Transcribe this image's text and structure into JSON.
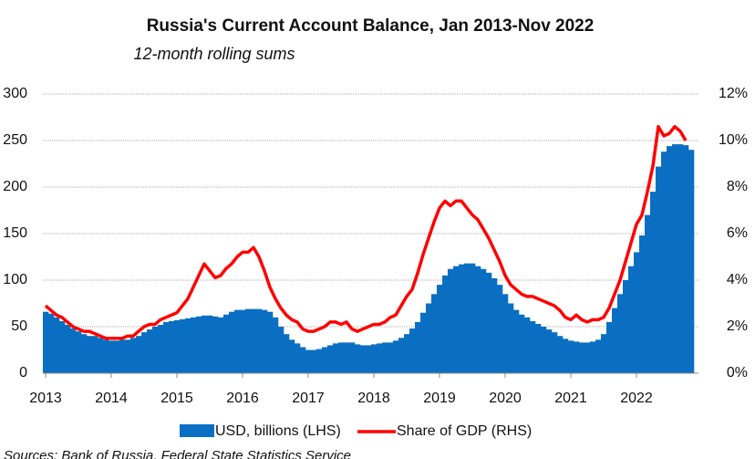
{
  "chart_data": {
    "type": "bar-line",
    "title": "Russia's Current Account Balance, Jan 2013-Nov 2022",
    "subtitle": "12-month rolling sums",
    "source": "Sources: Bank of Russia, Federal State Statistics Service",
    "categories": [
      "2013",
      null,
      null,
      null,
      null,
      null,
      null,
      null,
      null,
      null,
      null,
      null,
      "2014",
      null,
      null,
      null,
      null,
      null,
      null,
      null,
      null,
      null,
      null,
      null,
      "2015",
      null,
      null,
      null,
      null,
      null,
      null,
      null,
      null,
      null,
      null,
      null,
      "2016",
      null,
      null,
      null,
      null,
      null,
      null,
      null,
      null,
      null,
      null,
      null,
      "2017",
      null,
      null,
      null,
      null,
      null,
      null,
      null,
      null,
      null,
      null,
      null,
      "2018",
      null,
      null,
      null,
      null,
      null,
      null,
      null,
      null,
      null,
      null,
      null,
      "2019",
      null,
      null,
      null,
      null,
      null,
      null,
      null,
      null,
      null,
      null,
      null,
      "2020",
      null,
      null,
      null,
      null,
      null,
      null,
      null,
      null,
      null,
      null,
      null,
      "2021",
      null,
      null,
      null,
      null,
      null,
      null,
      null,
      null,
      null,
      null,
      null,
      "2022",
      null,
      null,
      null,
      null,
      null,
      null,
      null,
      null,
      null,
      null
    ],
    "series": [
      {
        "name": "USD, billions (LHS)",
        "color": "#0a6fc2",
        "axis": "y",
        "values": [
          66,
          64,
          60,
          56,
          52,
          48,
          45,
          42,
          40,
          40,
          38,
          36,
          35,
          35,
          36,
          36,
          38,
          40,
          44,
          47,
          50,
          52,
          55,
          56,
          57,
          58,
          59,
          60,
          61,
          62,
          62,
          61,
          60,
          63,
          66,
          68,
          68,
          69,
          69,
          69,
          68,
          66,
          60,
          50,
          42,
          36,
          32,
          28,
          25,
          25,
          26,
          28,
          30,
          32,
          33,
          33,
          33,
          31,
          30,
          30,
          31,
          32,
          33,
          33,
          35,
          38,
          42,
          48,
          55,
          65,
          75,
          85,
          95,
          105,
          112,
          115,
          117,
          118,
          118,
          115,
          112,
          108,
          102,
          95,
          85,
          75,
          68,
          63,
          60,
          56,
          53,
          50,
          47,
          44,
          40,
          37,
          35,
          34,
          33,
          33,
          34,
          36,
          42,
          55,
          70,
          85,
          100,
          115,
          130,
          148,
          170,
          195,
          222,
          238,
          244,
          246,
          246,
          245,
          240
        ]
      },
      {
        "name": "Share of GDP (RHS)",
        "color": "#ff0000",
        "axis": "y2",
        "values": [
          2.9,
          2.7,
          2.5,
          2.4,
          2.2,
          2.0,
          1.9,
          1.8,
          1.8,
          1.7,
          1.6,
          1.5,
          1.5,
          1.5,
          1.5,
          1.6,
          1.6,
          1.8,
          2.0,
          2.1,
          2.1,
          2.3,
          2.4,
          2.5,
          2.6,
          2.9,
          3.2,
          3.7,
          4.2,
          4.7,
          4.4,
          4.1,
          4.2,
          4.5,
          4.7,
          5.0,
          5.2,
          5.2,
          5.4,
          5.0,
          4.4,
          3.7,
          3.2,
          2.8,
          2.5,
          2.3,
          2.2,
          1.9,
          1.8,
          1.8,
          1.9,
          2.0,
          2.2,
          2.2,
          2.1,
          2.2,
          1.9,
          1.8,
          1.9,
          2.0,
          2.1,
          2.1,
          2.2,
          2.4,
          2.5,
          2.9,
          3.3,
          3.6,
          4.3,
          5.1,
          5.8,
          6.5,
          7.1,
          7.4,
          7.2,
          7.4,
          7.4,
          7.1,
          6.8,
          6.6,
          6.2,
          5.8,
          5.3,
          4.8,
          4.2,
          3.8,
          3.6,
          3.4,
          3.3,
          3.3,
          3.2,
          3.1,
          3.0,
          2.9,
          2.7,
          2.4,
          2.3,
          2.5,
          2.3,
          2.2,
          2.3,
          2.3,
          2.4,
          2.8,
          3.4,
          4.0,
          4.8,
          5.6,
          6.4,
          6.8,
          7.8,
          8.9,
          10.6,
          10.2,
          10.3,
          10.6,
          10.4,
          10.0,
          null
        ]
      }
    ],
    "ylim": [
      0,
      300
    ],
    "yticks": [
      0,
      50,
      100,
      150,
      200,
      250,
      300
    ],
    "y2lim": [
      0,
      12
    ],
    "y2ticks": [
      {
        "value": 0,
        "label": "0%"
      },
      {
        "value": 2,
        "label": "2%"
      },
      {
        "value": 4,
        "label": "4%"
      },
      {
        "value": 6,
        "label": "6%"
      },
      {
        "value": 8,
        "label": "8%"
      },
      {
        "value": 10,
        "label": "10%"
      },
      {
        "value": 12,
        "label": "12%"
      }
    ],
    "grid": true
  }
}
